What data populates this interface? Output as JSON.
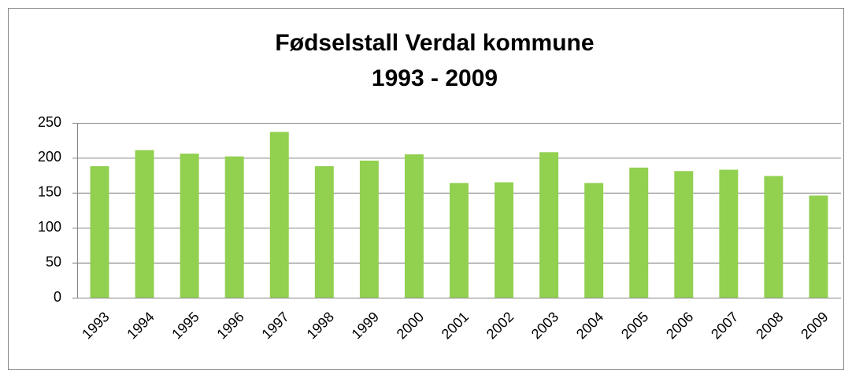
{
  "chart_data": {
    "type": "bar",
    "title": "Fødselstall Verdal kommune",
    "subtitle": "1993 - 2009",
    "categories": [
      "1993",
      "1994",
      "1995",
      "1996",
      "1997",
      "1998",
      "1999",
      "2000",
      "2001",
      "2002",
      "2003",
      "2004",
      "2005",
      "2006",
      "2007",
      "2008",
      "2009"
    ],
    "values": [
      188,
      211,
      206,
      202,
      237,
      188,
      196,
      205,
      164,
      165,
      208,
      164,
      186,
      181,
      183,
      174,
      146
    ],
    "color": "#92d050",
    "ylim": [
      0,
      250
    ],
    "yticks": [
      0,
      50,
      100,
      150,
      200,
      250
    ],
    "grid": true
  }
}
